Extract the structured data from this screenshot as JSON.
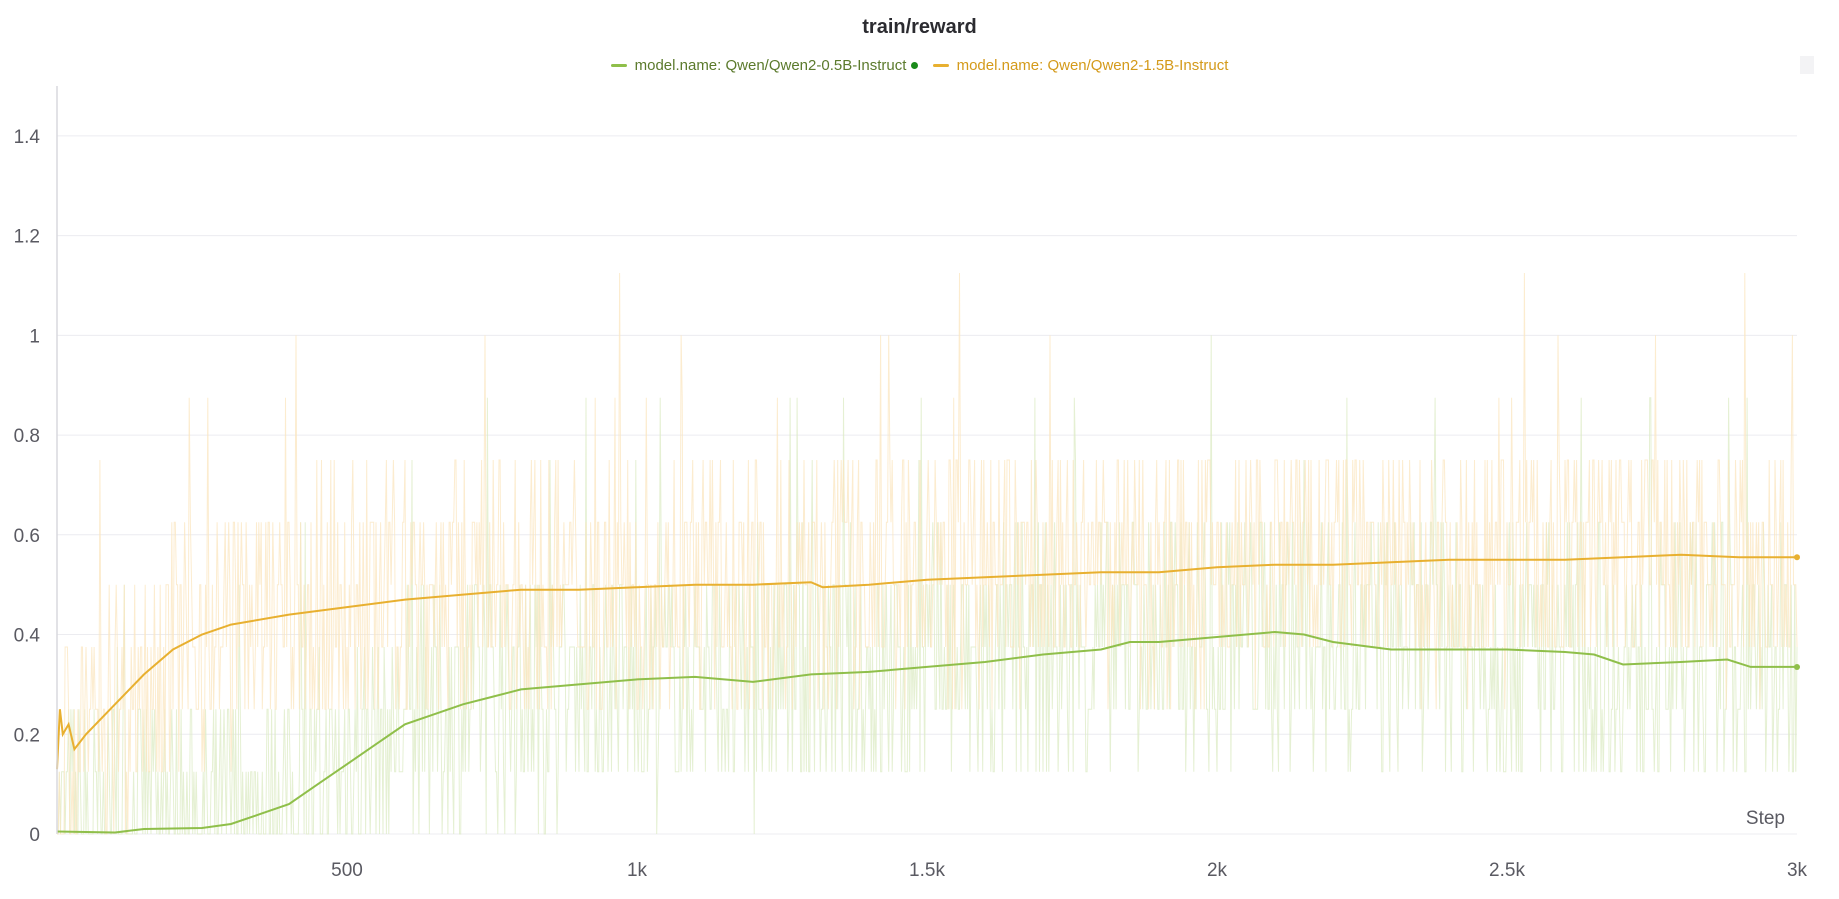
{
  "chart_data": {
    "type": "line",
    "title": "train/reward",
    "xlabel": "Step",
    "ylabel": "",
    "xlim": [
      0,
      3000
    ],
    "ylim": [
      0,
      1.5
    ],
    "xticks": [
      500,
      1000,
      1500,
      2000,
      2500,
      3000
    ],
    "xtick_labels": [
      "500",
      "1k",
      "1.5k",
      "2k",
      "2.5k",
      "3k"
    ],
    "yticks": [
      0,
      0.2,
      0.4,
      0.6,
      0.8,
      1,
      1.2,
      1.4
    ],
    "ytick_labels": [
      "0",
      "0.2",
      "0.4",
      "0.6",
      "0.8",
      "1",
      "1.2",
      "1.4"
    ],
    "grid": true,
    "legend_position": "top-center",
    "series": [
      {
        "name": "model.name: Qwen/Qwen2-0.5B-Instruct",
        "color": "#8fbf4a",
        "raw_color": "#dcebc4",
        "x": [
          0,
          100,
          150,
          250,
          300,
          350,
          400,
          450,
          500,
          550,
          600,
          650,
          700,
          750,
          800,
          900,
          1000,
          1100,
          1200,
          1300,
          1400,
          1500,
          1600,
          1700,
          1800,
          1850,
          1900,
          2000,
          2100,
          2150,
          2200,
          2300,
          2400,
          2500,
          2600,
          2650,
          2700,
          2800,
          2880,
          2920,
          3000
        ],
        "values": [
          0.005,
          0.003,
          0.01,
          0.012,
          0.02,
          0.04,
          0.06,
          0.1,
          0.14,
          0.18,
          0.22,
          0.24,
          0.26,
          0.275,
          0.29,
          0.3,
          0.31,
          0.315,
          0.305,
          0.32,
          0.325,
          0.335,
          0.345,
          0.36,
          0.37,
          0.385,
          0.385,
          0.395,
          0.405,
          0.4,
          0.385,
          0.37,
          0.37,
          0.37,
          0.365,
          0.36,
          0.34,
          0.345,
          0.35,
          0.335,
          0.335
        ]
      },
      {
        "name": "model.name: Qwen/Qwen2-1.5B-Instruct",
        "color": "#e8b030",
        "raw_color": "#fbe6bf",
        "x": [
          0,
          5,
          10,
          20,
          30,
          50,
          100,
          150,
          200,
          250,
          300,
          400,
          500,
          600,
          700,
          800,
          900,
          1000,
          1100,
          1200,
          1300,
          1320,
          1400,
          1500,
          1600,
          1700,
          1800,
          1900,
          2000,
          2100,
          2200,
          2300,
          2400,
          2500,
          2600,
          2700,
          2800,
          2900,
          3000
        ],
        "values": [
          0.13,
          0.25,
          0.2,
          0.22,
          0.17,
          0.2,
          0.26,
          0.32,
          0.37,
          0.4,
          0.42,
          0.44,
          0.455,
          0.47,
          0.48,
          0.49,
          0.49,
          0.495,
          0.5,
          0.5,
          0.505,
          0.495,
          0.5,
          0.51,
          0.515,
          0.52,
          0.525,
          0.525,
          0.535,
          0.54,
          0.54,
          0.545,
          0.55,
          0.55,
          0.55,
          0.555,
          0.56,
          0.555,
          0.555
        ]
      }
    ]
  }
}
